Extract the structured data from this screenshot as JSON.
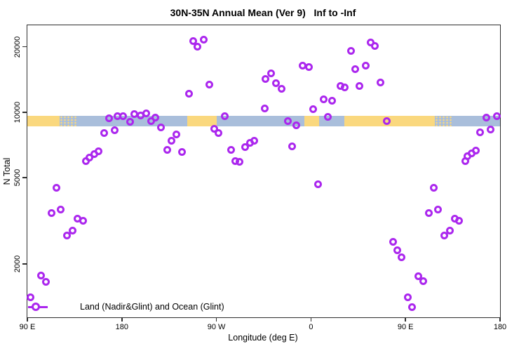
{
  "colors": {
    "point": "#AB27EE",
    "land": "#FAD87E",
    "ocean": "#A9BEDB",
    "axis": "#2E2E2E"
  },
  "legend": {
    "label": "Land (Nadir&Glint) and Ocean (Glint)"
  },
  "chart_data": {
    "type": "scatter",
    "title": "30N-35N Annual Mean (Ver 9)   Inf to -Inf",
    "xlabel": "Longitude (deg E)",
    "ylabel": "N Total",
    "y_scale": "log",
    "grid": false,
    "legend_position": "bottom-left",
    "x_axis_note": "x axis spans 450 deg of longitude: 90E -> 180 -> 90W -> 0 -> 90E -> 180 (pos = deg east of 90E along axis)",
    "xlim": [
      0,
      450
    ],
    "ylim": [
      1136,
      25134
    ],
    "x_ticks": [
      {
        "pos": 0,
        "label": "90 E"
      },
      {
        "pos": 90,
        "label": "180"
      },
      {
        "pos": 180,
        "label": "90 W"
      },
      {
        "pos": 270,
        "label": "0"
      },
      {
        "pos": 360,
        "label": "90 E"
      },
      {
        "pos": 450,
        "label": "180"
      }
    ],
    "y_ticks": [
      {
        "value": 20000,
        "label": "20000"
      },
      {
        "value": 10000,
        "label": "10000"
      },
      {
        "value": 5000,
        "label": "5000"
      },
      {
        "value": 2000,
        "label": "2000"
      }
    ],
    "map_band": {
      "description": "horizontal world-map strip (land=yellow, ocean=blue) drawn across the plot near N=8600-9650",
      "n_range": [
        8600,
        9650
      ],
      "segments": [
        {
          "from": 0,
          "to": 31,
          "type": "land"
        },
        {
          "from": 31,
          "to": 47,
          "type": "mixed"
        },
        {
          "from": 47,
          "to": 152,
          "type": "ocean"
        },
        {
          "from": 152,
          "to": 180,
          "type": "land"
        },
        {
          "from": 180,
          "to": 264,
          "type": "ocean"
        },
        {
          "from": 264,
          "to": 278,
          "type": "land"
        },
        {
          "from": 278,
          "to": 302,
          "type": "ocean"
        },
        {
          "from": 302,
          "to": 388,
          "type": "land"
        },
        {
          "from": 388,
          "to": 405,
          "type": "mixed"
        },
        {
          "from": 405,
          "to": 450,
          "type": "ocean"
        }
      ]
    },
    "points": [
      [
        158,
        21200
      ],
      [
        168,
        21500
      ],
      [
        162,
        20000
      ],
      [
        173,
        13350
      ],
      [
        154,
        12120
      ],
      [
        227,
        14170
      ],
      [
        226,
        10440
      ],
      [
        188,
        9620
      ],
      [
        78,
        9340
      ],
      [
        86,
        9620
      ],
      [
        91,
        9550
      ],
      [
        98,
        9000
      ],
      [
        102,
        9770
      ],
      [
        108,
        9690
      ],
      [
        113,
        9840
      ],
      [
        118,
        9130
      ],
      [
        122,
        9410
      ],
      [
        127,
        8540
      ],
      [
        73,
        7990
      ],
      [
        83,
        8290
      ],
      [
        178,
        8410
      ],
      [
        182,
        7990
      ],
      [
        142,
        7870
      ],
      [
        137,
        7360
      ],
      [
        133,
        6730
      ],
      [
        147,
        6580
      ],
      [
        68,
        6630
      ],
      [
        64,
        6390
      ],
      [
        59,
        6160
      ],
      [
        56,
        5970
      ],
      [
        194,
        6730
      ],
      [
        207,
        6930
      ],
      [
        212,
        7200
      ],
      [
        216,
        7410
      ],
      [
        198,
        5970
      ],
      [
        202,
        5930
      ],
      [
        327,
        21020
      ],
      [
        331,
        20110
      ],
      [
        308,
        19090
      ],
      [
        262,
        16330
      ],
      [
        268,
        16200
      ],
      [
        312,
        15730
      ],
      [
        322,
        16330
      ],
      [
        232,
        15150
      ],
      [
        237,
        13550
      ],
      [
        242,
        12860
      ],
      [
        298,
        13250
      ],
      [
        302,
        12960
      ],
      [
        316,
        13250
      ],
      [
        336,
        13750
      ],
      [
        282,
        11420
      ],
      [
        290,
        11250
      ],
      [
        272,
        10290
      ],
      [
        286,
        9480
      ],
      [
        248,
        9070
      ],
      [
        256,
        8730
      ],
      [
        342,
        9070
      ],
      [
        437,
        9410
      ],
      [
        447,
        9620
      ],
      [
        431,
        8050
      ],
      [
        441,
        8350
      ],
      [
        252,
        6980
      ],
      [
        417,
        5970
      ],
      [
        419,
        6250
      ],
      [
        423,
        6440
      ],
      [
        427,
        6680
      ],
      [
        28,
        4470
      ],
      [
        23,
        3420
      ],
      [
        32,
        3550
      ],
      [
        48,
        3245
      ],
      [
        53,
        3170
      ],
      [
        43,
        2840
      ],
      [
        38,
        2710
      ],
      [
        13,
        1775
      ],
      [
        18,
        1660
      ],
      [
        3,
        1400
      ],
      [
        277,
        4670
      ],
      [
        387,
        4500
      ],
      [
        382,
        3420
      ],
      [
        391,
        3550
      ],
      [
        407,
        3245
      ],
      [
        411,
        3170
      ],
      [
        402,
        2840
      ],
      [
        397,
        2710
      ],
      [
        348,
        2520
      ],
      [
        352,
        2320
      ],
      [
        356,
        2140
      ],
      [
        372,
        1760
      ],
      [
        377,
        1670
      ],
      [
        362,
        1400
      ],
      [
        366,
        1270
      ]
    ]
  }
}
